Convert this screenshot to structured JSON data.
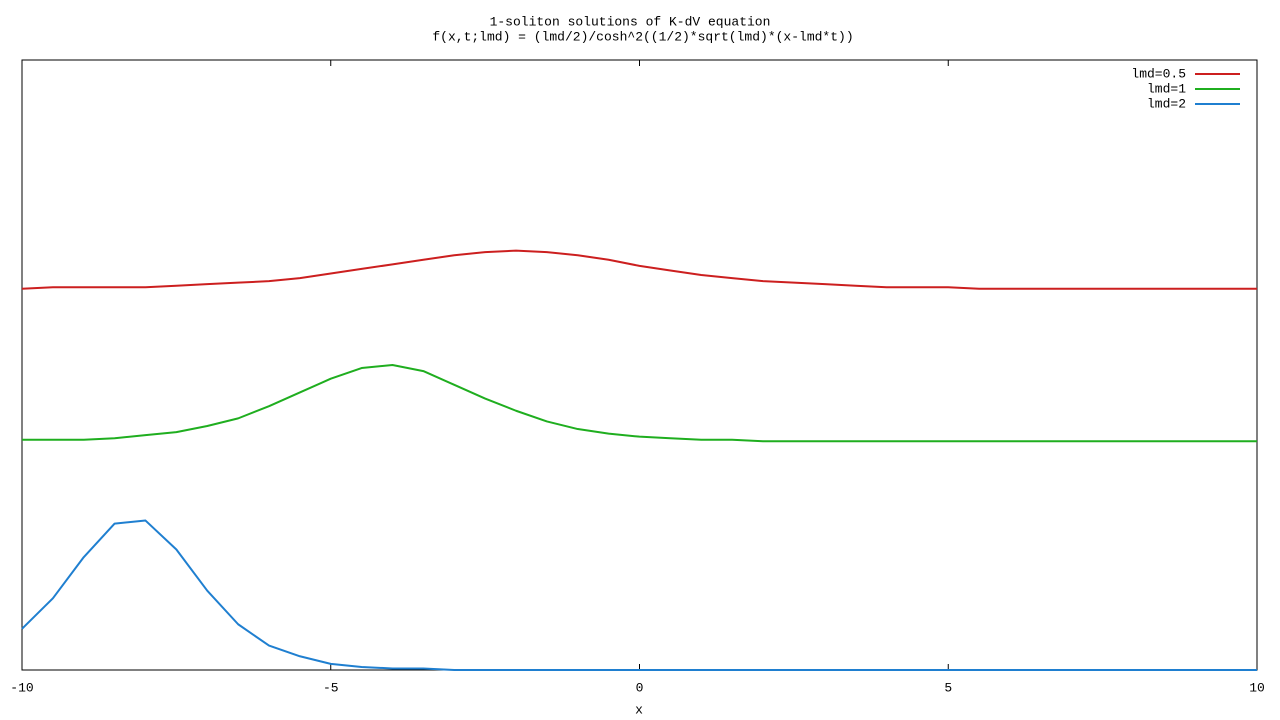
{
  "chart_data": {
    "type": "line",
    "title": "1-soliton solutions of  K-dV equation",
    "subtitle": "f(x,t;lmd) = (lmd/2)/cosh^2((1/2)*sqrt(lmd)*(x-lmd*t))",
    "x_label": "x",
    "x": [
      -10,
      -9.5,
      -9,
      -8.5,
      -8,
      -7.5,
      -7,
      -6.5,
      -6,
      -5.5,
      -5,
      -4.5,
      -4,
      -3.5,
      -3,
      -2.5,
      -2,
      -1.5,
      -1,
      -0.5,
      0,
      0.5,
      1,
      1.5,
      2,
      2.5,
      3,
      3.5,
      4,
      4.5,
      5,
      5.5,
      6,
      6.5,
      7,
      7.5,
      8,
      8.5,
      9,
      9.5,
      10
    ],
    "series": [
      {
        "name": "lmd=0.5",
        "color": "#cc1f1f",
        "values": [
          2.5,
          2.51,
          2.51,
          2.51,
          2.51,
          2.52,
          2.53,
          2.54,
          2.55,
          2.57,
          2.6,
          2.63,
          2.66,
          2.69,
          2.72,
          2.74,
          2.75,
          2.74,
          2.72,
          2.69,
          2.65,
          2.62,
          2.59,
          2.57,
          2.55,
          2.54,
          2.53,
          2.52,
          2.51,
          2.51,
          2.51,
          2.5,
          2.5,
          2.5,
          2.5,
          2.5,
          2.5,
          2.5,
          2.5,
          2.5,
          2.5
        ]
      },
      {
        "name": "lmd=1",
        "color": "#1fae1f",
        "values": [
          1.51,
          1.51,
          1.51,
          1.52,
          1.54,
          1.56,
          1.6,
          1.65,
          1.73,
          1.82,
          1.91,
          1.98,
          2.0,
          1.96,
          1.87,
          1.78,
          1.7,
          1.63,
          1.58,
          1.55,
          1.53,
          1.52,
          1.51,
          1.51,
          1.5,
          1.5,
          1.5,
          1.5,
          1.5,
          1.5,
          1.5,
          1.5,
          1.5,
          1.5,
          1.5,
          1.5,
          1.5,
          1.5,
          1.5,
          1.5,
          1.5
        ]
      },
      {
        "name": "lmd=2",
        "color": "#1f7fd0",
        "values": [
          0.27,
          0.47,
          0.74,
          0.96,
          0.98,
          0.79,
          0.52,
          0.3,
          0.16,
          0.09,
          0.04,
          0.02,
          0.01,
          0.01,
          0,
          0,
          0,
          0,
          0,
          0,
          0,
          0,
          0,
          0,
          0,
          0,
          0,
          0,
          0,
          0,
          0,
          0,
          0,
          0,
          0,
          0,
          0,
          0,
          0,
          0,
          0
        ]
      }
    ],
    "xlim": [
      -10,
      10
    ],
    "xticks": [
      -10,
      -5,
      0,
      5,
      10
    ],
    "ylim": [
      0,
      4
    ],
    "legend": "top-right"
  }
}
